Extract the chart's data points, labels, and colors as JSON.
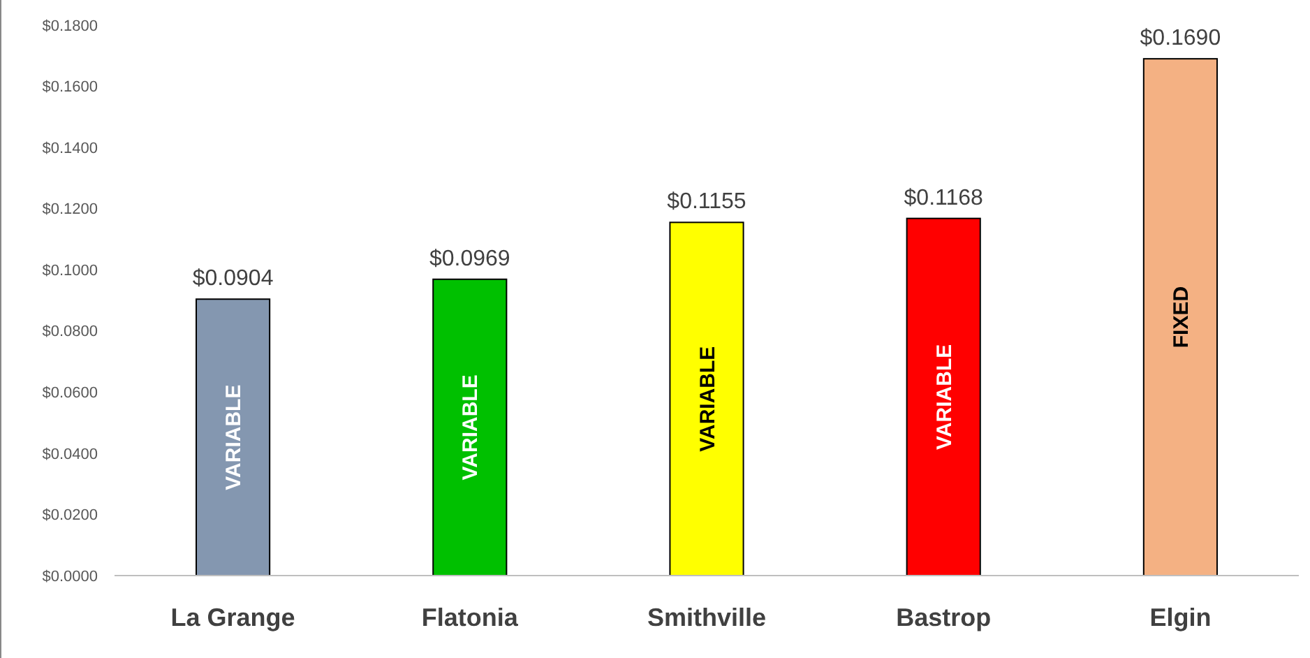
{
  "chart_data": {
    "type": "bar",
    "categories": [
      "La Grange",
      "Flatonia",
      "Smithville",
      "Bastrop",
      "Elgin"
    ],
    "values": [
      0.0904,
      0.0969,
      0.1155,
      0.1168,
      0.169
    ],
    "colors": [
      "#8497b0",
      "#00c000",
      "#ffff00",
      "#ff0000",
      "#f4b183"
    ],
    "value_labels": [
      "$0.0904",
      "$0.0969",
      "$0.1155",
      "$0.1168",
      "$0.1690"
    ],
    "ylim": [
      0,
      0.18
    ],
    "yticks": [
      {
        "value": 0,
        "label": "$0.0000"
      },
      {
        "value": 0.02,
        "label": "$0.0200"
      },
      {
        "value": 0.04,
        "label": "$0.0400"
      },
      {
        "value": 0.06,
        "label": "$0.0600"
      },
      {
        "value": 0.08,
        "label": "$0.0800"
      },
      {
        "value": 0.1,
        "label": "$0.1000"
      },
      {
        "value": 0.12,
        "label": "$0.1200"
      },
      {
        "value": 0.14,
        "label": "$0.1400"
      },
      {
        "value": 0.16,
        "label": "$0.1600"
      },
      {
        "value": 0.18,
        "label": "$0.1800"
      }
    ],
    "annotations": [
      "VARIABLE",
      "VARIABLE",
      "VARIABLE",
      "VARIABLE",
      "FIXED"
    ],
    "grid": false
  }
}
